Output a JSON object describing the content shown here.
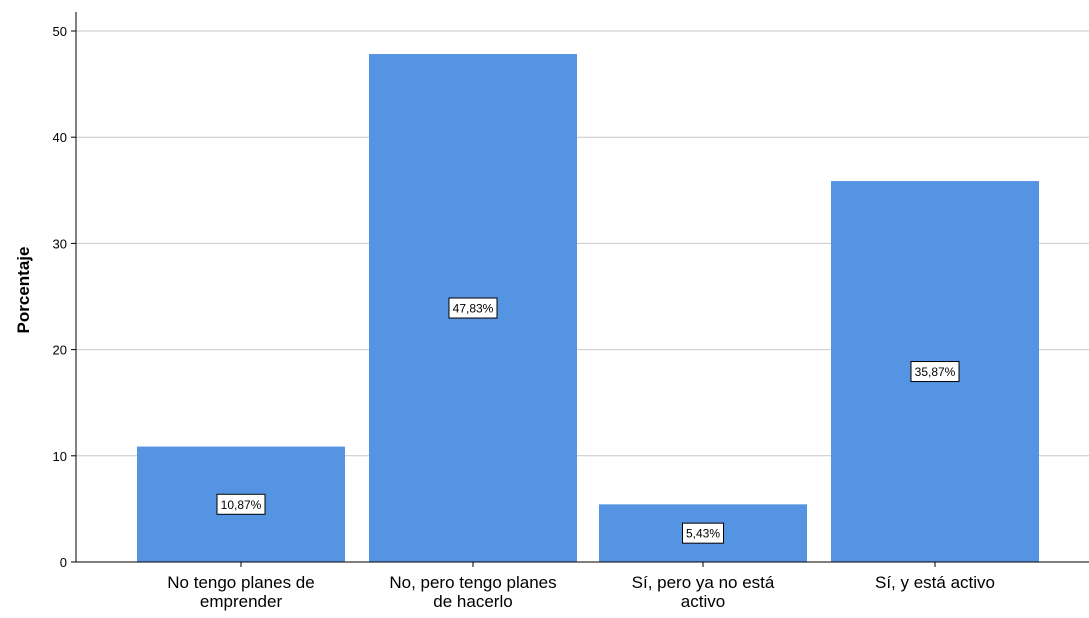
{
  "chart_data": {
    "type": "bar",
    "categories": [
      [
        "No tengo planes de",
        "emprender"
      ],
      [
        "No, pero tengo planes",
        "de hacerlo"
      ],
      [
        "Sí, pero ya no está",
        "activo"
      ],
      [
        "Sí, y está activo"
      ]
    ],
    "values": [
      10.87,
      47.83,
      5.43,
      35.87
    ],
    "data_labels": [
      "10,87%",
      "47,83%",
      "5,43%",
      "35,87%"
    ],
    "ylabel": "Porcentaje",
    "xlabel": "",
    "ylim": [
      0,
      52
    ],
    "yticks": [
      0,
      10,
      20,
      30,
      40,
      50
    ],
    "grid": true,
    "colors": {
      "bar": "#5494e3",
      "grid": "#c8c8c8",
      "axis": "#000000"
    }
  }
}
